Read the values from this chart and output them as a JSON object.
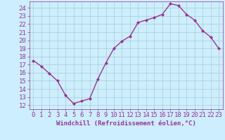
{
  "x": [
    0,
    1,
    2,
    3,
    4,
    5,
    6,
    7,
    8,
    9,
    10,
    11,
    12,
    13,
    14,
    15,
    16,
    17,
    18,
    19,
    20,
    21,
    22,
    23
  ],
  "y": [
    17.5,
    16.8,
    15.9,
    15.0,
    13.2,
    12.2,
    12.5,
    12.8,
    15.2,
    17.2,
    19.0,
    19.9,
    20.5,
    22.2,
    22.5,
    22.8,
    23.2,
    24.5,
    24.3,
    23.2,
    22.5,
    21.2,
    20.4,
    19.0
  ],
  "line_color": "#993399",
  "marker": "D",
  "marker_size": 2.0,
  "bg_color": "#cceeff",
  "grid_color": "#aacccc",
  "xlabel": "Windchill (Refroidissement éolien,°C)",
  "xlabel_color": "#993399",
  "tick_color": "#993399",
  "ylim": [
    11.5,
    24.8
  ],
  "xlim": [
    -0.5,
    23.5
  ],
  "yticks": [
    12,
    13,
    14,
    15,
    16,
    17,
    18,
    19,
    20,
    21,
    22,
    23,
    24
  ],
  "xticks": [
    0,
    1,
    2,
    3,
    4,
    5,
    6,
    7,
    8,
    9,
    10,
    11,
    12,
    13,
    14,
    15,
    16,
    17,
    18,
    19,
    20,
    21,
    22,
    23
  ],
  "line_width": 1.0,
  "font_size": 6.5
}
